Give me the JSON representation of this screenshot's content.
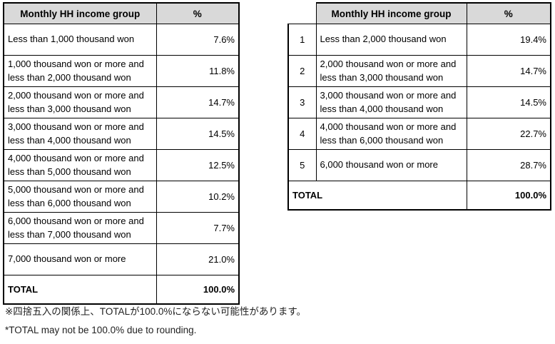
{
  "colors": {
    "header_bg": "#d9d9d9",
    "border": "#000000",
    "text": "#000000",
    "background": "#ffffff"
  },
  "left_table": {
    "headers": [
      "Monthly HH income group",
      "%"
    ],
    "rows": [
      {
        "group": "Less than 1,000 thousand won",
        "pct": "7.6%"
      },
      {
        "group": "1,000 thousand won or more and less than 2,000 thousand won",
        "pct": "11.8%"
      },
      {
        "group": "2,000 thousand won or more and less than 3,000 thousand won",
        "pct": "14.7%"
      },
      {
        "group": "3,000 thousand won or more and less than 4,000 thousand won",
        "pct": "14.5%"
      },
      {
        "group": "4,000 thousand won or more and less than 5,000 thousand won",
        "pct": "12.5%"
      },
      {
        "group": "5,000 thousand won or more and less than 6,000 thousand won",
        "pct": "10.2%"
      },
      {
        "group": "6,000 thousand won or more and less than 7,000 thousand won",
        "pct": "7.7%"
      },
      {
        "group": "7,000 thousand won or more",
        "pct": "21.0%"
      }
    ],
    "total": {
      "label": "TOTAL",
      "pct": "100.0%"
    }
  },
  "right_table": {
    "headers": [
      "Monthly HH income group",
      "%"
    ],
    "rows": [
      {
        "no": "1",
        "group": "Less than 2,000 thousand won",
        "pct": "19.4%"
      },
      {
        "no": "2",
        "group": "2,000 thousand won or more and less than 3,000 thousand won",
        "pct": "14.7%"
      },
      {
        "no": "3",
        "group": "3,000 thousand won or more and less than 4,000 thousand won",
        "pct": "14.5%"
      },
      {
        "no": "4",
        "group": "4,000 thousand won or more and less than 6,000 thousand won",
        "pct": "22.7%"
      },
      {
        "no": "5",
        "group": "6,000 thousand won or more",
        "pct": "28.7%"
      }
    ],
    "total": {
      "label": "TOTAL",
      "pct": "100.0%"
    }
  },
  "footnotes": {
    "jp": "※四捨五入の関係上、TOTALが100.0%にならない可能性があります。",
    "en": "*TOTAL may not be 100.0% due to rounding."
  }
}
